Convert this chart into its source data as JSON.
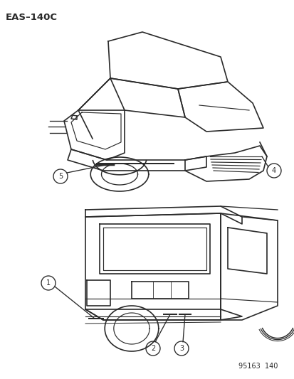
{
  "title": "EAS–140C",
  "footer": "95163  140",
  "background_color": "#ffffff",
  "line_color": "#2a2a2a",
  "fig_width": 4.14,
  "fig_height": 5.33,
  "dpi": 100
}
